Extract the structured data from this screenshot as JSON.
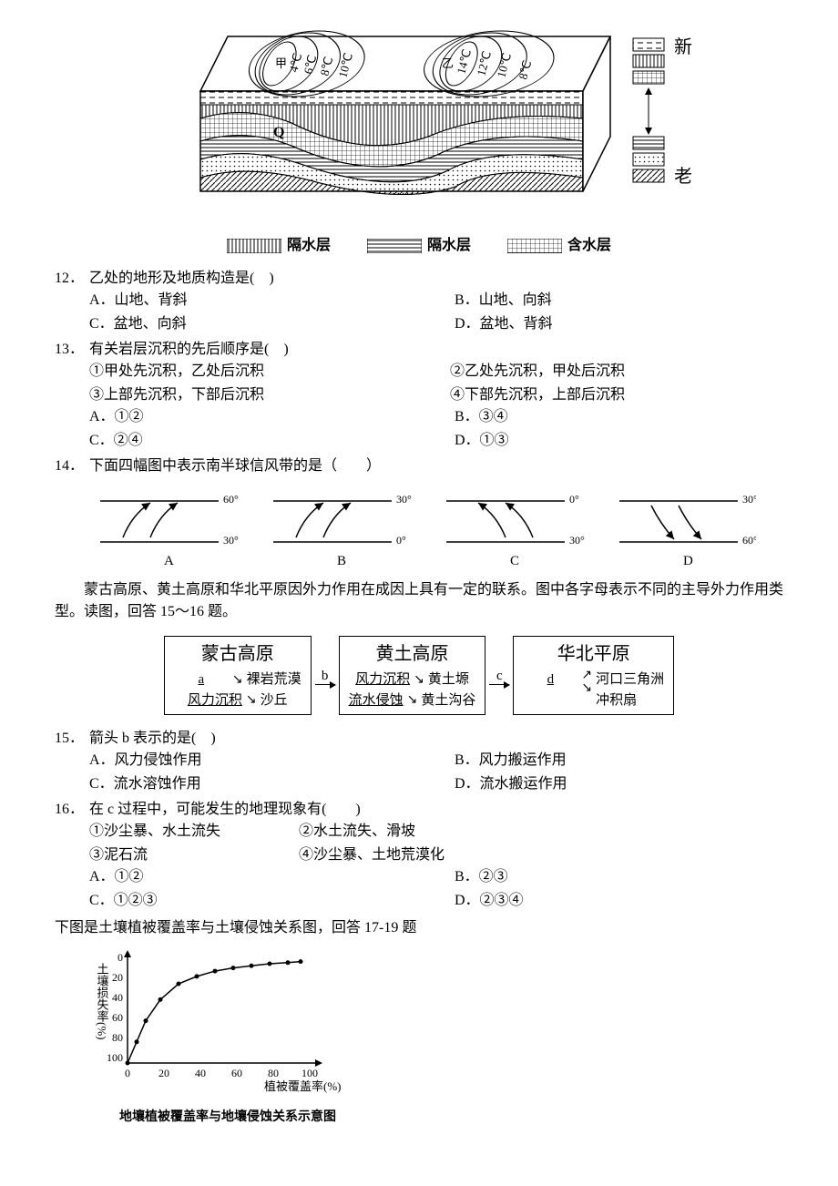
{
  "main_diagram": {
    "isotherms": [
      "4℃",
      "6℃",
      "8℃",
      "10℃",
      "14℃",
      "12℃",
      "10℃",
      "8℃"
    ],
    "labels": [
      "甲",
      "乙",
      "Q"
    ],
    "right_top": "新",
    "right_bottom": "老",
    "legend_items": [
      "隔水层",
      "隔水层",
      "含水层"
    ]
  },
  "q12": {
    "num": "12．",
    "text": "乙处的地形及地质构造是(　)",
    "options": {
      "A": "A．山地、背斜",
      "B": "B．山地、向斜",
      "C": "C．盆地、向斜",
      "D": "D．盆地、背斜"
    }
  },
  "q13": {
    "num": "13．",
    "text": "有关岩层沉积的先后顺序是(　)",
    "items": [
      "①甲处先沉积，乙处后沉积",
      "②乙处先沉积，甲处后沉积",
      "③上部先沉积，下部后沉积",
      "④下部先沉积，上部后沉积"
    ],
    "options": {
      "A": "A．①②",
      "B": "B．③④",
      "C": "C．②④",
      "D": "D．①③"
    }
  },
  "q14": {
    "num": "14．",
    "text": "下面四幅图中表示南半球信风带的是（　　）",
    "figure": {
      "panels": [
        {
          "label": "A",
          "top": "60°",
          "bottom": "30°",
          "arrow_up": true,
          "curve": "right"
        },
        {
          "label": "B",
          "top": "30°",
          "bottom": "0°",
          "arrow_up": true,
          "curve": "right"
        },
        {
          "label": "C",
          "top": "0°",
          "bottom": "30°",
          "arrow_up": true,
          "curve": "left"
        },
        {
          "label": "D",
          "top": "30°",
          "bottom": "60°",
          "arrow_down": true,
          "curve": "left"
        }
      ]
    }
  },
  "intro15": "蒙古高原、黄土高原和华北平原因外力作用在成因上具有一定的联系。图中各字母表示不同的主导外力作用类型。读图，回答 15～16 题。",
  "flow": {
    "box1": {
      "title": "蒙古高原",
      "rows": [
        {
          "label": "a",
          "result": "裸岩荒漠"
        },
        {
          "label": "风力沉积",
          "result": "沙丘"
        }
      ]
    },
    "arrow_b": "b",
    "box2": {
      "title": "黄土高原",
      "rows": [
        {
          "label": "风力沉积",
          "result": "黄土塬"
        },
        {
          "label": "流水侵蚀",
          "result": "黄土沟谷"
        }
      ]
    },
    "arrow_c": "c",
    "box3": {
      "title": "华北平原",
      "rows": [
        {
          "label": "d",
          "result1": "河口三角洲",
          "result2": "冲积扇"
        }
      ]
    }
  },
  "q15": {
    "num": "15．",
    "text": "箭头 b 表示的是(　)",
    "options": {
      "A": "A．风力侵蚀作用",
      "B": "B．风力搬运作用",
      "C": "C．流水溶蚀作用",
      "D": "D．流水搬运作用"
    }
  },
  "q16": {
    "num": "16．",
    "text": "在 c 过程中，可能发生的地理现象有(　　)",
    "items": [
      "①沙尘暴、水土流失",
      "②水土流失、滑坡",
      "③泥石流",
      "④沙尘暴、土地荒漠化"
    ],
    "options": {
      "A": "A．①②",
      "B": "B．②③",
      "C": "C．①②③",
      "D": "D．②③④"
    }
  },
  "intro17": "下图是土壤植被覆盖率与土壤侵蚀关系图，回答 17-19 题",
  "chart": {
    "y_label": "土壤损失率(%)",
    "x_label": "植被覆盖率(%)",
    "y_ticks": [
      0,
      20,
      40,
      60,
      80,
      100
    ],
    "x_ticks": [
      0,
      20,
      40,
      60,
      80,
      100
    ],
    "points": [
      {
        "x": 0,
        "y": 100
      },
      {
        "x": 5,
        "y": 80
      },
      {
        "x": 10,
        "y": 60
      },
      {
        "x": 18,
        "y": 40
      },
      {
        "x": 28,
        "y": 25
      },
      {
        "x": 38,
        "y": 18
      },
      {
        "x": 48,
        "y": 13
      },
      {
        "x": 58,
        "y": 10
      },
      {
        "x": 68,
        "y": 8
      },
      {
        "x": 78,
        "y": 6
      },
      {
        "x": 88,
        "y": 5
      },
      {
        "x": 95,
        "y": 4
      }
    ],
    "caption": "地壤植被覆盖率与地壤侵蚀关系示意图"
  }
}
